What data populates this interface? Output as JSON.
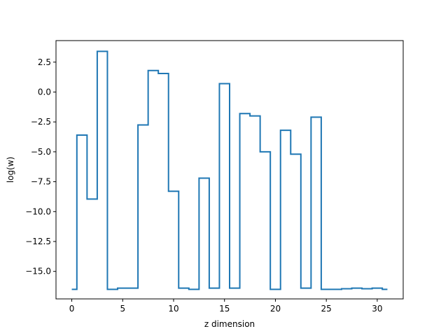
{
  "chart_data": {
    "type": "line",
    "drawstyle": "steps-mid",
    "title": "",
    "xlabel": "z dimension",
    "ylabel": "log(w)",
    "xlim": [
      -1.55,
      32.55
    ],
    "ylim": [
      -17.3,
      4.3
    ],
    "grid": false,
    "xticks": [
      0,
      5,
      10,
      15,
      20,
      25,
      30
    ],
    "xtick_labels": [
      "0",
      "5",
      "10",
      "15",
      "20",
      "25",
      "30"
    ],
    "yticks": [
      2.5,
      0.0,
      -2.5,
      -5.0,
      -7.5,
      -10.0,
      -12.5,
      -15.0
    ],
    "ytick_labels": [
      "2.5",
      "0.0",
      "−2.5",
      "−5.0",
      "−7.5",
      "−10.0",
      "−12.5",
      "−15.0"
    ],
    "series": [
      {
        "color": "#1f77b4",
        "x": [
          0,
          1,
          2,
          3,
          4,
          5,
          6,
          7,
          8,
          9,
          10,
          11,
          12,
          13,
          14,
          15,
          16,
          17,
          18,
          19,
          20,
          21,
          22,
          23,
          24,
          25,
          26,
          27,
          28,
          29,
          30,
          31
        ],
        "values": [
          -16.5,
          -3.6,
          -8.95,
          3.4,
          -16.5,
          -16.4,
          -16.4,
          -2.75,
          1.8,
          1.55,
          -8.3,
          -16.4,
          -16.5,
          -7.2,
          -16.4,
          0.7,
          -16.4,
          -1.8,
          -2.0,
          -5.0,
          -16.5,
          -3.2,
          -5.2,
          -16.4,
          -2.1,
          -16.5,
          -16.5,
          -16.45,
          -16.4,
          -16.45,
          -16.4,
          -16.5
        ]
      }
    ]
  }
}
